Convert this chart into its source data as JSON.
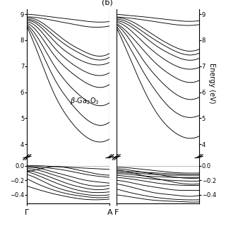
{
  "label_b": "(b)",
  "ylabel": "Energy (eV)",
  "xlabel_left_left": "Γ",
  "xlabel_left_right": "A",
  "xlabel_right": "F",
  "upper_ylim": [
    3.5,
    9.2
  ],
  "lower_ylim": [
    -0.52,
    0.12
  ],
  "upper_yticks": [
    4,
    5,
    6,
    7,
    8,
    9
  ],
  "lower_yticks": [
    -0.4,
    -0.2,
    0.0
  ],
  "figsize": [
    3.2,
    3.2
  ],
  "dpi": 100,
  "linewidth": 0.65,
  "linecolor": "black",
  "hline_color": "#bbbbbb",
  "background": "white",
  "label_fontsize": 7,
  "tick_fontsize": 6,
  "xlabel_fontsize": 8
}
